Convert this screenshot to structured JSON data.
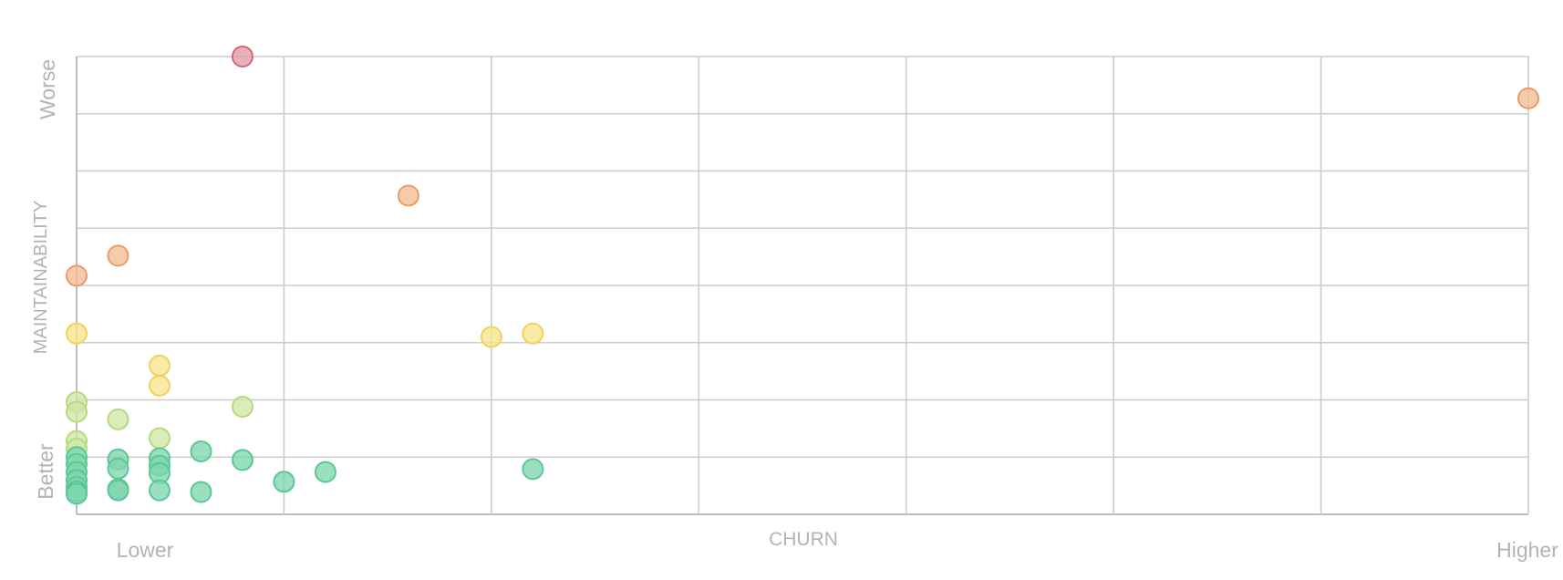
{
  "chart_data": {
    "type": "scatter",
    "title": "",
    "xlabel": "CHURN",
    "ylabel": "MAINTAINABILITY",
    "x_end_labels": {
      "low": "Lower",
      "high": "Higher"
    },
    "y_end_labels": {
      "low": "Better",
      "high": "Worse"
    },
    "xlim": [
      0,
      35
    ],
    "ylim": [
      0,
      8
    ],
    "grid": true,
    "x_gridlines": [
      0,
      5,
      10,
      15,
      20,
      25,
      30,
      35
    ],
    "y_gridlines": [
      0,
      1,
      2,
      3,
      4,
      5,
      6,
      7,
      8
    ],
    "legend": "none",
    "colors": {
      "green": {
        "fill": "#7dd6ad",
        "stroke": "#5cc795"
      },
      "lime": {
        "fill": "#cfe7a4",
        "stroke": "#b6d982"
      },
      "yellow": {
        "fill": "#f7e48a",
        "stroke": "#f0d25e"
      },
      "orange": {
        "fill": "#f2bc93",
        "stroke": "#e89c6a"
      },
      "red": {
        "fill": "#e49aa7",
        "stroke": "#d3677a"
      }
    },
    "points": [
      {
        "x": 4,
        "y": 8.0,
        "grade": "red"
      },
      {
        "x": 35,
        "y": 7.27,
        "grade": "orange"
      },
      {
        "x": 8,
        "y": 5.57,
        "grade": "orange"
      },
      {
        "x": 1,
        "y": 4.52,
        "grade": "orange"
      },
      {
        "x": 0,
        "y": 4.17,
        "grade": "orange"
      },
      {
        "x": 0,
        "y": 3.16,
        "grade": "yellow"
      },
      {
        "x": 10,
        "y": 3.1,
        "grade": "yellow"
      },
      {
        "x": 11,
        "y": 3.16,
        "grade": "yellow"
      },
      {
        "x": 2,
        "y": 2.6,
        "grade": "yellow"
      },
      {
        "x": 2,
        "y": 2.25,
        "grade": "yellow"
      },
      {
        "x": 0,
        "y": 1.96,
        "grade": "lime"
      },
      {
        "x": 0,
        "y": 1.79,
        "grade": "lime"
      },
      {
        "x": 1,
        "y": 1.66,
        "grade": "lime"
      },
      {
        "x": 4,
        "y": 1.88,
        "grade": "lime"
      },
      {
        "x": 2,
        "y": 1.33,
        "grade": "lime"
      },
      {
        "x": 0,
        "y": 1.28,
        "grade": "lime"
      },
      {
        "x": 0,
        "y": 1.15,
        "grade": "lime"
      },
      {
        "x": 3,
        "y": 1.1,
        "grade": "green"
      },
      {
        "x": 4,
        "y": 0.95,
        "grade": "green"
      },
      {
        "x": 1,
        "y": 0.96,
        "grade": "green"
      },
      {
        "x": 1,
        "y": 0.8,
        "grade": "green"
      },
      {
        "x": 2,
        "y": 0.98,
        "grade": "green"
      },
      {
        "x": 2,
        "y": 0.85,
        "grade": "green"
      },
      {
        "x": 2,
        "y": 0.72,
        "grade": "green"
      },
      {
        "x": 0,
        "y": 1.0,
        "grade": "green"
      },
      {
        "x": 0,
        "y": 0.88,
        "grade": "green"
      },
      {
        "x": 0,
        "y": 0.74,
        "grade": "green"
      },
      {
        "x": 0,
        "y": 0.6,
        "grade": "green"
      },
      {
        "x": 0,
        "y": 0.48,
        "grade": "green"
      },
      {
        "x": 0,
        "y": 0.4,
        "grade": "green"
      },
      {
        "x": 0,
        "y": 0.36,
        "grade": "green"
      },
      {
        "x": 1,
        "y": 0.44,
        "grade": "green"
      },
      {
        "x": 1,
        "y": 0.42,
        "grade": "green"
      },
      {
        "x": 2,
        "y": 0.42,
        "grade": "green"
      },
      {
        "x": 3,
        "y": 0.39,
        "grade": "green"
      },
      {
        "x": 5,
        "y": 0.57,
        "grade": "green"
      },
      {
        "x": 6,
        "y": 0.74,
        "grade": "green"
      },
      {
        "x": 11,
        "y": 0.79,
        "grade": "green"
      }
    ]
  }
}
